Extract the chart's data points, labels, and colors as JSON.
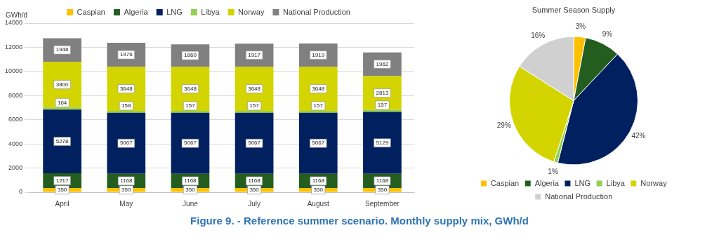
{
  "chart_data": [
    {
      "type": "bar",
      "stacked": true,
      "ylabel": "GWh/d",
      "categories": [
        "April",
        "May",
        "June",
        "July",
        "August",
        "September"
      ],
      "series": [
        {
          "name": "Caspian",
          "color": "#ffc000",
          "values": [
            350,
            350,
            350,
            350,
            350,
            350
          ]
        },
        {
          "name": "Algeria",
          "color": "#245e1f",
          "values": [
            1217,
            1168,
            1168,
            1168,
            1168,
            1168
          ]
        },
        {
          "name": "LNG",
          "color": "#002060",
          "values": [
            5278,
            5067,
            5067,
            5067,
            5067,
            5129
          ]
        },
        {
          "name": "Libya",
          "color": "#92d050",
          "values": [
            164,
            158,
            157,
            157,
            157,
            157
          ]
        },
        {
          "name": "Norway",
          "color": "#d4d400",
          "values": [
            3800,
            3648,
            3648,
            3648,
            3648,
            2813
          ]
        },
        {
          "name": "National Production",
          "color": "#808080",
          "values": [
            1948,
            1976,
            1860,
            1917,
            1919,
            1962
          ]
        }
      ],
      "ylim": [
        0,
        14000
      ],
      "yticks": [
        0,
        2000,
        4000,
        6000,
        8000,
        10000,
        12000,
        14000
      ],
      "grid": "y",
      "legend": "top",
      "data_labels": true,
      "annotations": [
        "Figure 9. - Reference summer scenario. Monthly supply mix, GWh/d"
      ]
    },
    {
      "type": "pie",
      "title": "Summer Season Supply",
      "categories": [
        "Caspian",
        "Algeria",
        "LNG",
        "Libya",
        "Norway",
        "National Production"
      ],
      "values": [
        3,
        9,
        42,
        1,
        29,
        16
      ],
      "colors": [
        "#ffc000",
        "#245e1f",
        "#002060",
        "#92d050",
        "#d4d400",
        "#d0d0d0"
      ],
      "value_labels": [
        "3%",
        "9%",
        "42%",
        "1%",
        "29%",
        "16%"
      ],
      "legend": "bottom"
    }
  ]
}
